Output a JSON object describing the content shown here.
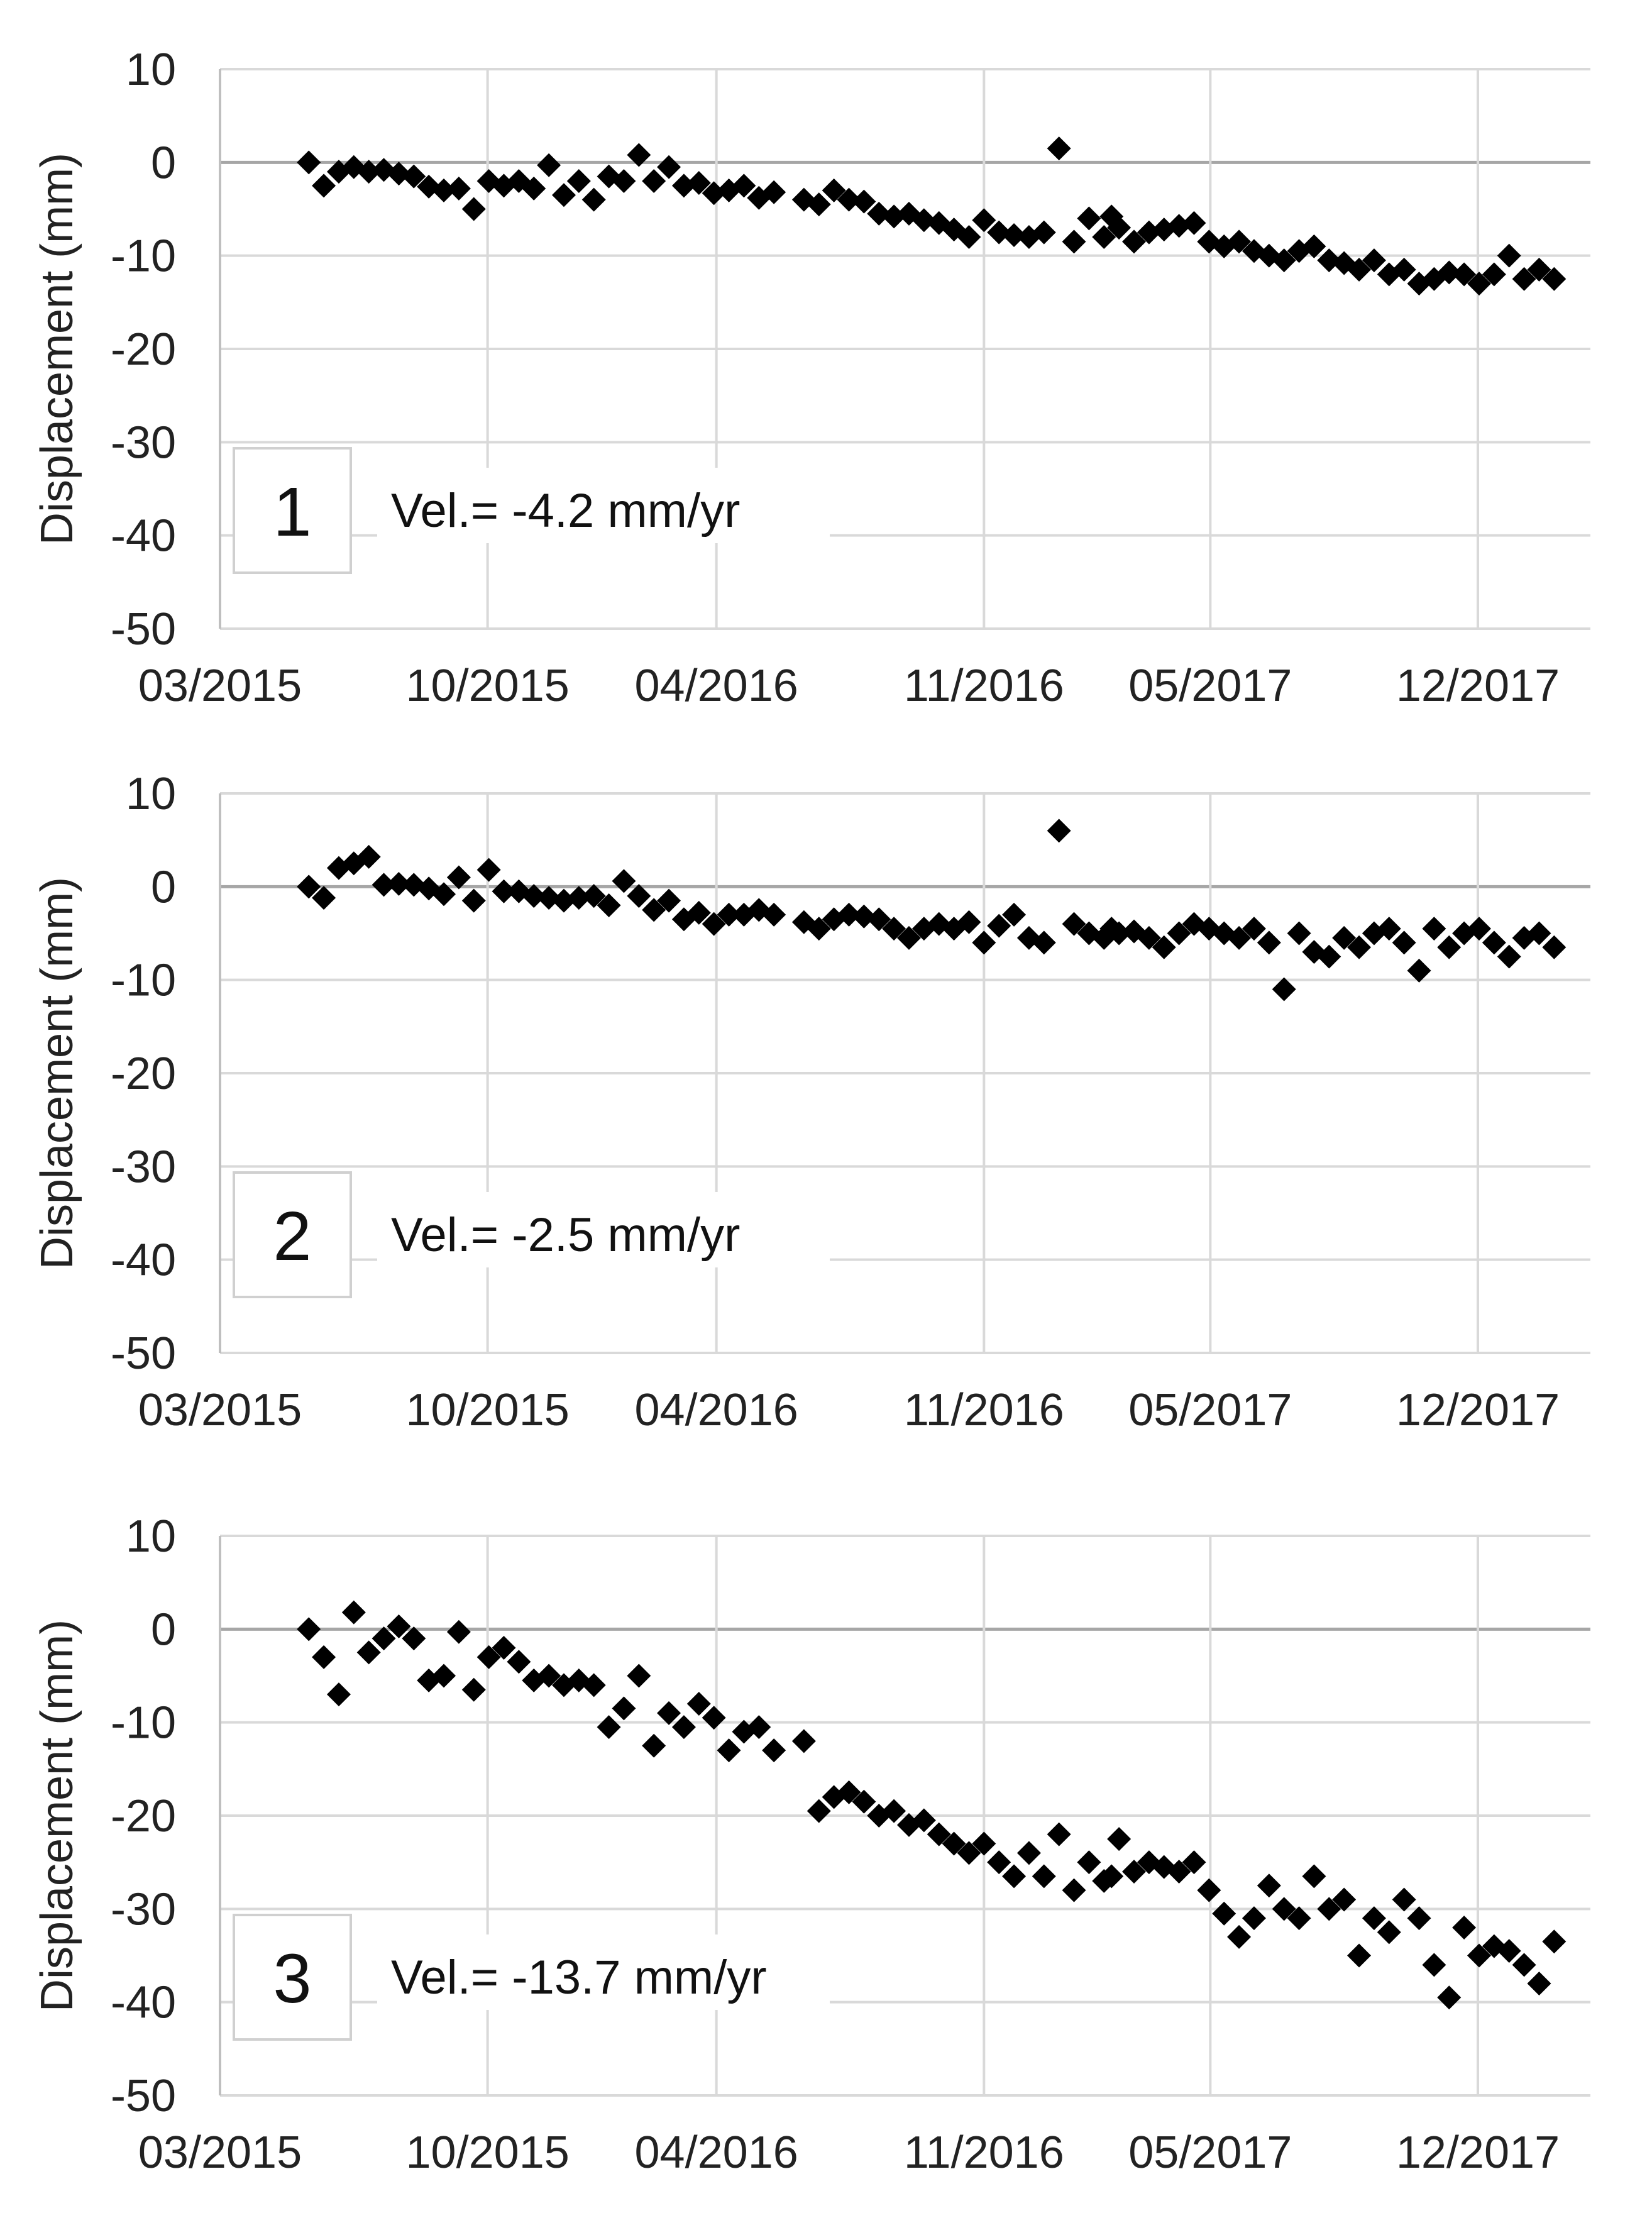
{
  "chart_data": [
    {
      "type": "scatter",
      "ylabel": "Displacement (mm)",
      "xlabel": "",
      "ylim": [
        -50,
        10
      ],
      "yticks": [
        10,
        0,
        -10,
        -20,
        -30,
        -40,
        -50
      ],
      "xlim": [
        "2015-03",
        "2018-03"
      ],
      "xticks": [
        "03/2015",
        "10/2015",
        "04/2016",
        "11/2016",
        "05/2017",
        "12/2017"
      ],
      "grid": true,
      "marker": "diamond",
      "marker_color": "#000000",
      "panel_label": "1",
      "annotation": "Vel.= -4.2 mm/yr",
      "x": [
        "2015-05-11",
        "2015-05-23",
        "2015-06-04",
        "2015-06-16",
        "2015-06-28",
        "2015-07-10",
        "2015-07-22",
        "2015-08-03",
        "2015-08-15",
        "2015-08-27",
        "2015-09-08",
        "2015-09-20",
        "2015-10-02",
        "2015-10-14",
        "2015-10-26",
        "2015-11-07",
        "2015-11-19",
        "2015-12-01",
        "2015-12-13",
        "2015-12-25",
        "2016-01-06",
        "2016-01-18",
        "2016-01-30",
        "2016-02-11",
        "2016-02-23",
        "2016-03-06",
        "2016-03-18",
        "2016-03-30",
        "2016-04-11",
        "2016-04-23",
        "2016-05-05",
        "2016-05-17",
        "2016-06-10",
        "2016-06-22",
        "2016-07-04",
        "2016-07-16",
        "2016-07-28",
        "2016-08-09",
        "2016-08-21",
        "2016-09-02",
        "2016-09-14",
        "2016-09-26",
        "2016-10-08",
        "2016-10-20",
        "2016-11-01",
        "2016-11-13",
        "2016-11-25",
        "2016-12-07",
        "2016-12-19",
        "2016-12-31",
        "2017-01-12",
        "2017-01-24",
        "2017-02-05",
        "2017-02-11",
        "2017-02-17",
        "2017-03-01",
        "2017-03-13",
        "2017-03-25",
        "2017-04-06",
        "2017-04-18",
        "2017-04-30",
        "2017-05-12",
        "2017-05-24",
        "2017-06-05",
        "2017-06-17",
        "2017-06-29",
        "2017-07-11",
        "2017-07-23",
        "2017-08-04",
        "2017-08-16",
        "2017-08-28",
        "2017-09-09",
        "2017-09-21",
        "2017-10-03",
        "2017-10-15",
        "2017-10-27",
        "2017-11-08",
        "2017-11-20",
        "2017-12-02",
        "2017-12-14",
        "2017-12-26",
        "2018-01-07",
        "2018-01-19",
        "2018-01-31"
      ],
      "y": [
        0,
        -2.5,
        -1,
        -0.5,
        -1,
        -0.8,
        -1.2,
        -1.5,
        -2.6,
        -3,
        -2.8,
        -5,
        -2,
        -2.5,
        -2,
        -2.8,
        -0.3,
        -3.5,
        -2,
        -4,
        -1.5,
        -2,
        0.8,
        -2,
        -0.5,
        -2.5,
        -2.2,
        -3.3,
        -3,
        -2.5,
        -3.8,
        -3.2,
        -4,
        -4.5,
        -3,
        -4,
        -4.2,
        -5.5,
        -5.8,
        -5.5,
        -6.2,
        -6.5,
        -7.2,
        -8,
        -6.2,
        -7.5,
        -7.8,
        -8,
        -7.5,
        1.5,
        -8.5,
        -6,
        -8,
        -5.8,
        -7,
        -8.5,
        -7.5,
        -7.2,
        -6.8,
        -6.5,
        -8.5,
        -9,
        -8.5,
        -9.5,
        -10,
        -10.5,
        -9.5,
        -9,
        -10.5,
        -10.8,
        -11.5,
        -10.5,
        -12,
        -11.5,
        -13,
        -12.5,
        -11.8,
        -12,
        -13,
        -12,
        -10,
        -12.5,
        -11.5,
        -12.5
      ]
    },
    {
      "type": "scatter",
      "ylabel": "Displacement (mm)",
      "xlabel": "",
      "ylim": [
        -50,
        10
      ],
      "yticks": [
        10,
        0,
        -10,
        -20,
        -30,
        -40,
        -50
      ],
      "xlim": [
        "2015-03",
        "2018-03"
      ],
      "xticks": [
        "03/2015",
        "10/2015",
        "04/2016",
        "11/2016",
        "05/2017",
        "12/2017"
      ],
      "grid": true,
      "marker": "diamond",
      "marker_color": "#000000",
      "panel_label": "2",
      "annotation": "Vel.= -2.5 mm/yr",
      "x": [
        "2015-05-11",
        "2015-05-23",
        "2015-06-04",
        "2015-06-16",
        "2015-06-28",
        "2015-07-10",
        "2015-07-22",
        "2015-08-03",
        "2015-08-15",
        "2015-08-27",
        "2015-09-08",
        "2015-09-20",
        "2015-10-02",
        "2015-10-14",
        "2015-10-26",
        "2015-11-07",
        "2015-11-19",
        "2015-12-01",
        "2015-12-13",
        "2015-12-25",
        "2016-01-06",
        "2016-01-18",
        "2016-01-30",
        "2016-02-11",
        "2016-02-23",
        "2016-03-06",
        "2016-03-18",
        "2016-03-30",
        "2016-04-11",
        "2016-04-23",
        "2016-05-05",
        "2016-05-17",
        "2016-06-10",
        "2016-06-22",
        "2016-07-04",
        "2016-07-16",
        "2016-07-28",
        "2016-08-09",
        "2016-08-21",
        "2016-09-02",
        "2016-09-14",
        "2016-09-26",
        "2016-10-08",
        "2016-10-20",
        "2016-11-01",
        "2016-11-13",
        "2016-11-25",
        "2016-12-07",
        "2016-12-19",
        "2016-12-31",
        "2017-01-12",
        "2017-01-24",
        "2017-02-05",
        "2017-02-11",
        "2017-02-17",
        "2017-03-01",
        "2017-03-13",
        "2017-03-25",
        "2017-04-06",
        "2017-04-18",
        "2017-04-30",
        "2017-05-12",
        "2017-05-24",
        "2017-06-05",
        "2017-06-17",
        "2017-06-29",
        "2017-07-11",
        "2017-07-23",
        "2017-08-04",
        "2017-08-16",
        "2017-08-28",
        "2017-09-09",
        "2017-09-21",
        "2017-10-03",
        "2017-10-15",
        "2017-10-27",
        "2017-11-08",
        "2017-11-20",
        "2017-12-02",
        "2017-12-14",
        "2017-12-26",
        "2018-01-07",
        "2018-01-19",
        "2018-01-31"
      ],
      "y": [
        0,
        -1.2,
        2,
        2.5,
        3.2,
        0.2,
        0.3,
        0.2,
        -0.2,
        -0.8,
        1,
        -1.5,
        1.8,
        -0.5,
        -0.5,
        -1,
        -1.2,
        -1.5,
        -1.2,
        -1,
        -2,
        0.6,
        -1,
        -2.5,
        -1.5,
        -3.5,
        -2.8,
        -4,
        -3,
        -3,
        -2.5,
        -3,
        -3.8,
        -4.5,
        -3.5,
        -3,
        -3.2,
        -3.5,
        -4.5,
        -5.5,
        -4.5,
        -4,
        -4.5,
        -3.8,
        -6,
        -4.2,
        -3,
        -5.5,
        -6,
        6,
        -4,
        -5,
        -5.5,
        -4.5,
        -5,
        -4.8,
        -5.5,
        -6.5,
        -5,
        -4,
        -4.5,
        -5,
        -5.5,
        -4.5,
        -6,
        -11,
        -5,
        -7,
        -7.5,
        -5.5,
        -6.5,
        -5,
        -4.5,
        -6,
        -9,
        -4.5,
        -6.5,
        -5,
        -4.5,
        -6,
        -7.5,
        -5.5,
        -5,
        -6.5
      ]
    },
    {
      "type": "scatter",
      "ylabel": "Displacement (mm)",
      "xlabel": "",
      "ylim": [
        -50,
        10
      ],
      "yticks": [
        10,
        0,
        -10,
        -20,
        -30,
        -40,
        -50
      ],
      "xlim": [
        "2015-03",
        "2018-03"
      ],
      "xticks": [
        "03/2015",
        "10/2015",
        "04/2016",
        "11/2016",
        "05/2017",
        "12/2017"
      ],
      "grid": true,
      "marker": "diamond",
      "marker_color": "#000000",
      "panel_label": "3",
      "annotation": "Vel.= -13.7 mm/yr",
      "x": [
        "2015-05-11",
        "2015-05-23",
        "2015-06-04",
        "2015-06-16",
        "2015-06-28",
        "2015-07-10",
        "2015-07-22",
        "2015-08-03",
        "2015-08-15",
        "2015-08-27",
        "2015-09-08",
        "2015-09-20",
        "2015-10-02",
        "2015-10-14",
        "2015-10-26",
        "2015-11-07",
        "2015-11-19",
        "2015-12-01",
        "2015-12-13",
        "2015-12-25",
        "2016-01-06",
        "2016-01-18",
        "2016-01-30",
        "2016-02-11",
        "2016-02-23",
        "2016-03-06",
        "2016-03-18",
        "2016-03-30",
        "2016-04-11",
        "2016-04-23",
        "2016-05-05",
        "2016-05-17",
        "2016-06-10",
        "2016-06-22",
        "2016-07-04",
        "2016-07-16",
        "2016-07-28",
        "2016-08-09",
        "2016-08-21",
        "2016-09-02",
        "2016-09-14",
        "2016-09-26",
        "2016-10-08",
        "2016-10-20",
        "2016-11-01",
        "2016-11-13",
        "2016-11-25",
        "2016-12-07",
        "2016-12-19",
        "2016-12-31",
        "2017-01-12",
        "2017-01-24",
        "2017-02-05",
        "2017-02-11",
        "2017-02-17",
        "2017-03-01",
        "2017-03-13",
        "2017-03-25",
        "2017-04-06",
        "2017-04-18",
        "2017-04-30",
        "2017-05-12",
        "2017-05-24",
        "2017-06-05",
        "2017-06-17",
        "2017-06-29",
        "2017-07-11",
        "2017-07-23",
        "2017-08-04",
        "2017-08-16",
        "2017-08-28",
        "2017-09-09",
        "2017-09-21",
        "2017-10-03",
        "2017-10-15",
        "2017-10-27",
        "2017-11-08",
        "2017-11-20",
        "2017-12-02",
        "2017-12-14",
        "2017-12-26",
        "2018-01-07",
        "2018-01-19",
        "2018-01-31"
      ],
      "y": [
        0,
        -3,
        -7,
        1.8,
        -2.5,
        -1,
        0.3,
        -1,
        -5.5,
        -5,
        -0.3,
        -6.5,
        -3,
        -2,
        -3.5,
        -5.5,
        -5,
        -6,
        -5.5,
        -6,
        -10.5,
        -8.5,
        -5,
        -12.5,
        -9,
        -10.5,
        -8,
        -9.5,
        -13,
        -11,
        -10.5,
        -13,
        -12,
        -19.5,
        -18,
        -17.5,
        -18.5,
        -20,
        -19.5,
        -21,
        -20.5,
        -22,
        -23,
        -24,
        -23,
        -25,
        -26.5,
        -24,
        -26.5,
        -22,
        -28,
        -25,
        -27,
        -26.5,
        -22.5,
        -26,
        -25,
        -25.5,
        -26,
        -25,
        -28,
        -30.5,
        -33,
        -31,
        -27.5,
        -30,
        -31,
        -26.5,
        -30,
        -29,
        -35,
        -31,
        -32.5,
        -29,
        -31,
        -36,
        -39.5,
        -32,
        -35,
        -34,
        -34.5,
        -36,
        -38,
        -33.5
      ]
    }
  ]
}
